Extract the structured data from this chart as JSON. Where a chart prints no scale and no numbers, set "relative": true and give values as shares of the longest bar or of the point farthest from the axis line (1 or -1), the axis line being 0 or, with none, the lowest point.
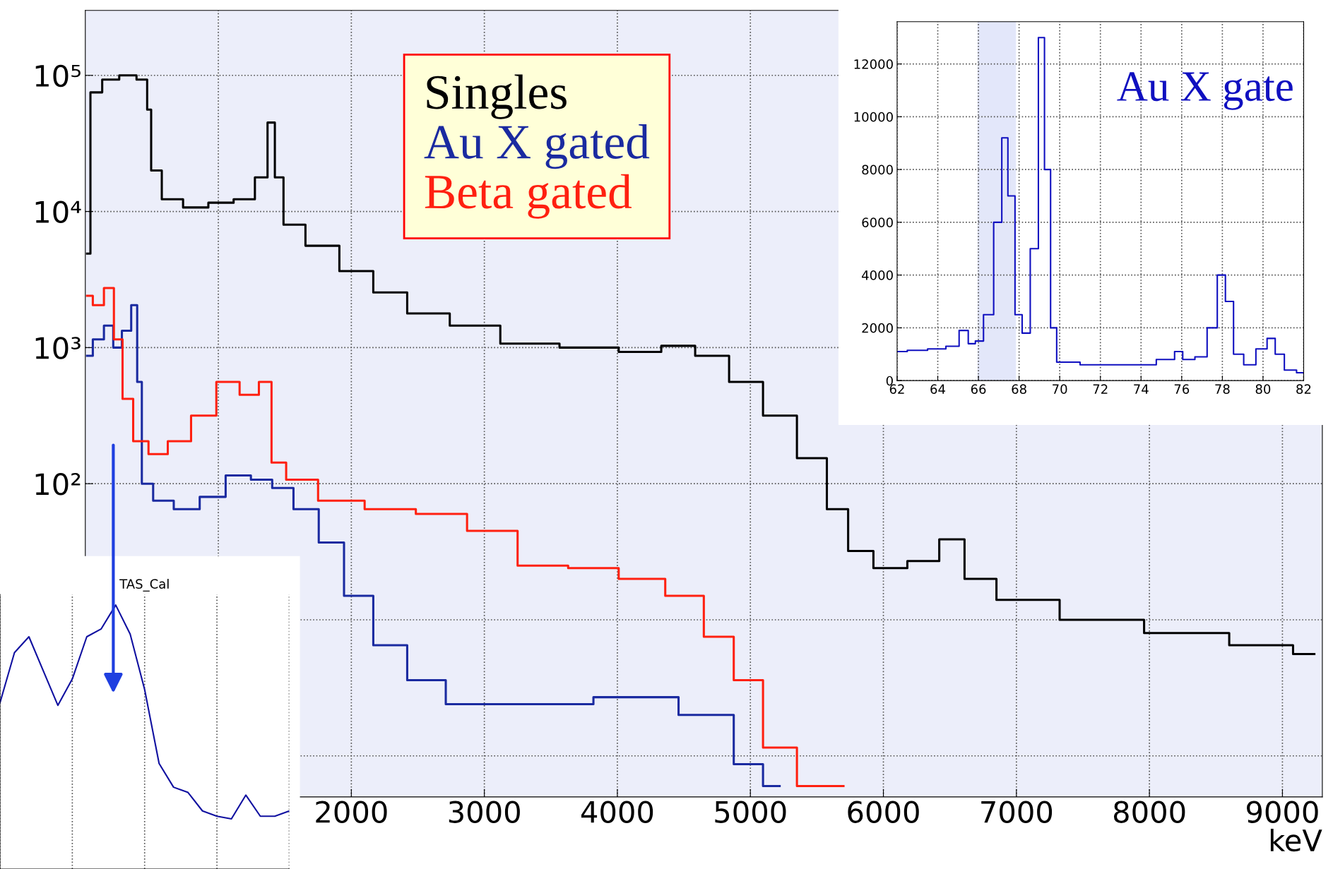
{
  "chart_data": [
    {
      "type": "step",
      "xlabel": "keV",
      "log": "y",
      "grid": true,
      "legend": "top",
      "xlim": [
        0,
        9300
      ],
      "ylim": [
        0.5,
        300000
      ],
      "xticks": [
        {
          "value": 1000,
          "label": null
        },
        2000,
        3000,
        4000,
        5000,
        6000,
        7000,
        8000,
        9000
      ],
      "yticks": [
        {
          "value": 1,
          "label": null
        },
        {
          "value": 10,
          "label": null
        },
        {
          "value": 100,
          "label": "10²"
        },
        {
          "value": 1000,
          "label": "10³"
        },
        {
          "value": 10000,
          "label": "10⁴"
        },
        {
          "value": 100000,
          "label": "10⁵"
        }
      ],
      "series": [
        {
          "name": "Singles",
          "color": "#000000",
          "x": [
            13,
            64,
            190,
            320,
            450,
            480,
            510,
            640,
            830,
            1020,
            1210,
            1340,
            1400,
            1450,
            1530,
            1780,
            2040,
            2290,
            2550,
            2930,
            3310,
            3820,
            4200,
            4460,
            4710,
            4970,
            5220,
            5480,
            5670,
            5800,
            6050,
            6310,
            6530,
            6690,
            7010,
            7640,
            8280,
            8920,
            9240
          ],
          "values": [
            4900,
            75000,
            93000,
            100000,
            93000,
            56000,
            20000,
            12300,
            10700,
            11600,
            12300,
            17800,
            45000,
            17800,
            8000,
            5600,
            3650,
            2540,
            1780,
            1450,
            1070,
            1000,
            930,
            1030,
            870,
            560,
            316,
            154,
            65,
            32,
            24,
            27,
            39,
            20,
            14,
            10,
            8,
            6.5,
            5.6
          ]
        },
        {
          "name": "Au X gated",
          "color": "#1a2aa0",
          "x": [
            13,
            100,
            180,
            240,
            310,
            380,
            400,
            450,
            570,
            760,
            960,
            1150,
            1340,
            1470,
            1660,
            1850,
            2040,
            2290,
            2550,
            2870,
            3500,
            4140,
            4780,
            4970,
            5220
          ],
          "values": [
            870,
            1150,
            1450,
            1000,
            1330,
            2050,
            560,
            100,
            75,
            65,
            80,
            115,
            107,
            93,
            65,
            37,
            15,
            6.5,
            3.6,
            2.4,
            2.4,
            2.7,
            2,
            0.87,
            0.6
          ]
        },
        {
          "name": "Beta gated",
          "color": "#ff2010",
          "x": [
            13,
            100,
            180,
            250,
            310,
            410,
            540,
            700,
            890,
            1080,
            1240,
            1370,
            1430,
            1590,
            1910,
            2290,
            2680,
            3060,
            3440,
            3820,
            4200,
            4520,
            4780,
            4970,
            5220,
            5480,
            5700
          ],
          "values": [
            2400,
            2050,
            2740,
            1150,
            420,
            205,
            165,
            205,
            316,
            560,
            450,
            560,
            143,
            107,
            75,
            65,
            60,
            45,
            25,
            24,
            20,
            15,
            7.5,
            3.6,
            1.15,
            0.6,
            0.6
          ]
        }
      ]
    },
    {
      "type": "step",
      "grid": true,
      "xlim": [
        62,
        82
      ],
      "ylim": [
        0,
        13600
      ],
      "xticks": [
        62,
        64,
        66,
        68,
        70,
        72,
        74,
        76,
        78,
        80,
        82
      ],
      "yticks": [
        0,
        2000,
        4000,
        6000,
        8000,
        10000,
        12000
      ],
      "annotations": [
        "Au X gate"
      ],
      "bands": [
        {
          "axis": "x",
          "from": 66,
          "to": 67.8,
          "color": "#1f3fd0"
        }
      ],
      "series": [
        {
          "color": "#1010c0",
          "x": [
            62,
            63,
            64,
            64.8,
            65.3,
            65.7,
            66,
            66.5,
            67,
            67.3,
            67.6,
            68,
            68.3,
            68.8,
            69.1,
            69.4,
            69.7,
            70,
            72,
            74,
            75.5,
            75.8,
            76.3,
            77,
            77.5,
            78,
            78.3,
            78.8,
            79.3,
            80,
            80.4,
            80.8,
            81.3,
            82
          ],
          "values": [
            1100,
            1150,
            1200,
            1300,
            1900,
            1400,
            1500,
            2500,
            6000,
            9200,
            7000,
            2500,
            1800,
            5000,
            13000,
            8000,
            2000,
            700,
            600,
            600,
            800,
            1100,
            800,
            900,
            2000,
            4000,
            3000,
            1000,
            600,
            1200,
            1600,
            1000,
            400,
            300
          ]
        }
      ]
    },
    {
      "type": "line",
      "title": "TAS_Cal",
      "relative": true,
      "grid": "x",
      "categories": [
        null,
        null,
        null,
        null,
        null,
        null,
        null,
        null,
        null,
        null,
        null,
        null,
        null,
        null,
        null,
        null,
        null,
        null,
        null,
        null,
        null
      ],
      "series": [
        {
          "color": "#1010a0",
          "values": [
            0.63,
            0.82,
            0.88,
            0.75,
            0.62,
            0.72,
            0.88,
            0.91,
            1.0,
            0.89,
            0.68,
            0.4,
            0.31,
            0.29,
            0.22,
            0.2,
            0.19,
            0.28,
            0.2,
            0.2,
            0.22
          ]
        }
      ]
    }
  ]
}
